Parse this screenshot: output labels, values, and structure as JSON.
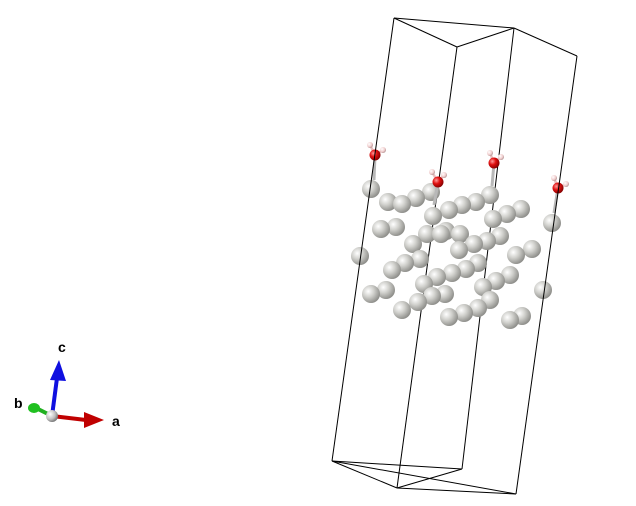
{
  "axes": {
    "a": {
      "label": "a",
      "color": "#c00000"
    },
    "b": {
      "label": "b",
      "color": "#20b020"
    },
    "c": {
      "label": "c",
      "color": "#1010e0"
    }
  },
  "colors": {
    "cell_edge": "#000000",
    "metal_atom": "#c8c8c4",
    "oxygen_atom": "#e01010",
    "hydrogen_atom": "#f2d0d0"
  },
  "structure": {
    "metal_atom_count": 52,
    "water_molecule_count": 4
  }
}
